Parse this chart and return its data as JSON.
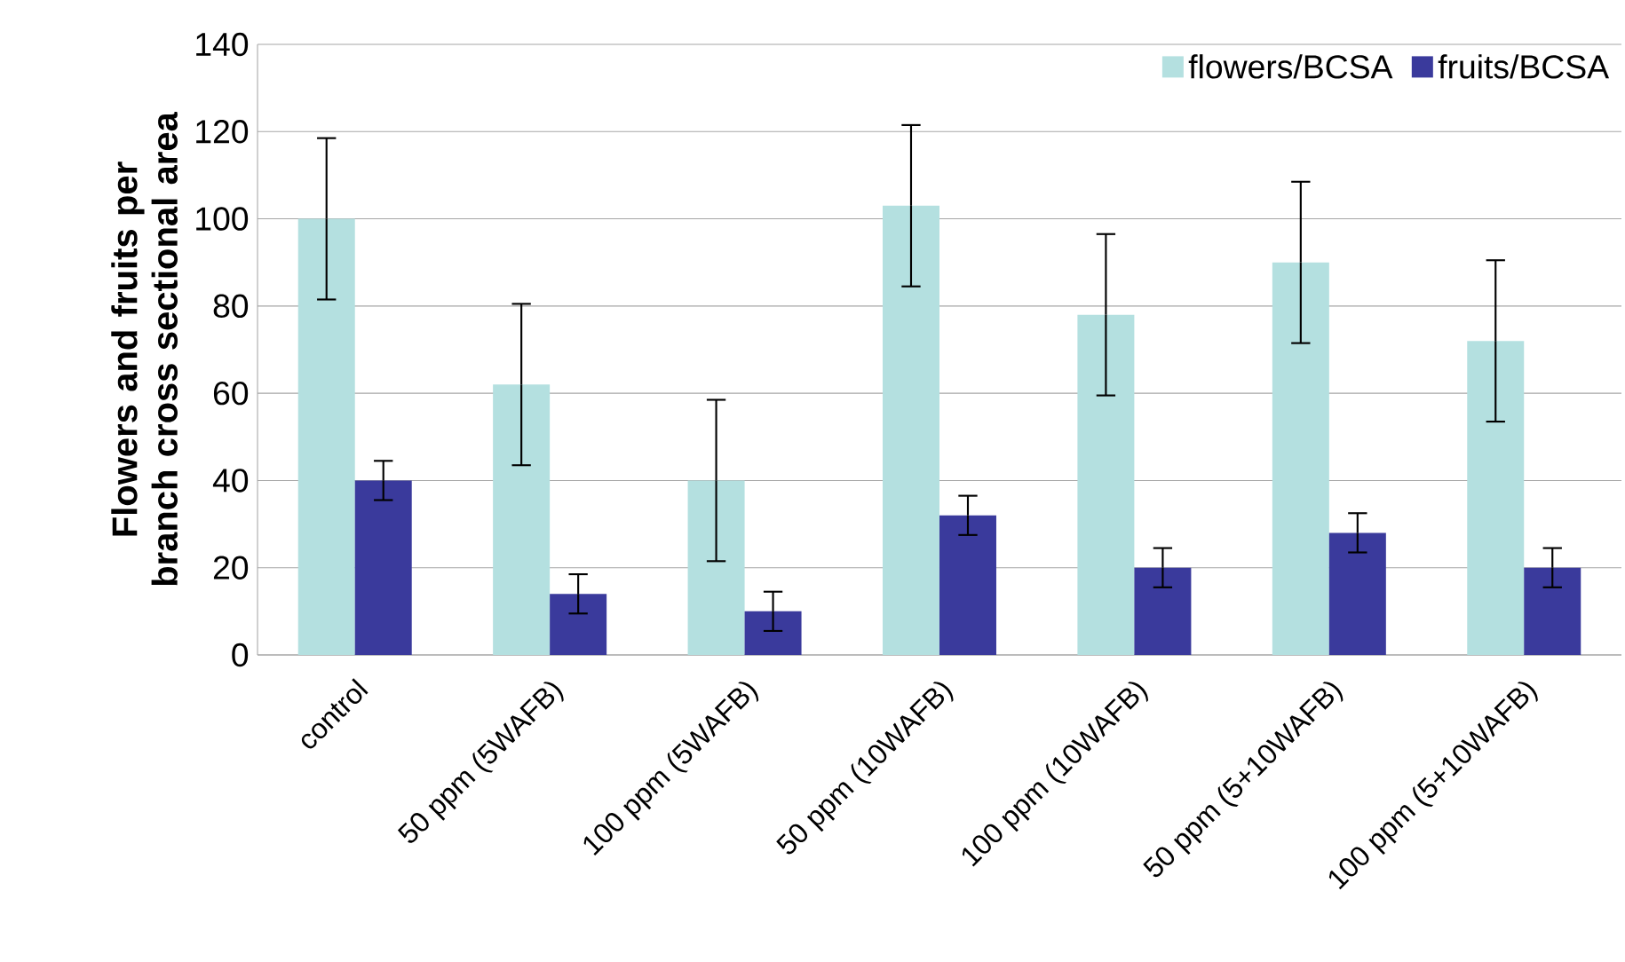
{
  "chart_data": {
    "type": "bar",
    "ylabel": "Flowers and fruits per branch cross sectional area",
    "categories": [
      "control",
      "50 ppm (5WAFB)",
      "100 ppm (5WAFB)",
      "50 ppm (10WAFB)",
      "100 ppm (10WAFB)",
      "50 ppm (5+10WAFB)",
      "100 ppm (5+10WAFB)"
    ],
    "series": [
      {
        "name": "flowers/BCSA",
        "color": "#b4e0e0",
        "values": [
          100,
          62,
          40,
          103,
          78,
          90,
          72
        ],
        "errors": [
          18.5,
          18.5,
          18.5,
          18.5,
          18.5,
          18.5,
          18.5
        ]
      },
      {
        "name": "fruits/BCSA",
        "color": "#3a3a9c",
        "values": [
          40,
          14,
          10,
          32,
          20,
          28,
          20
        ],
        "errors": [
          4.5,
          4.5,
          4.5,
          4.5,
          4.5,
          4.5,
          4.5
        ]
      }
    ],
    "ylim": [
      0,
      140
    ],
    "yticks": [
      0,
      20,
      40,
      60,
      80,
      100,
      120,
      140
    ],
    "grid": "y",
    "legend": "top right"
  }
}
